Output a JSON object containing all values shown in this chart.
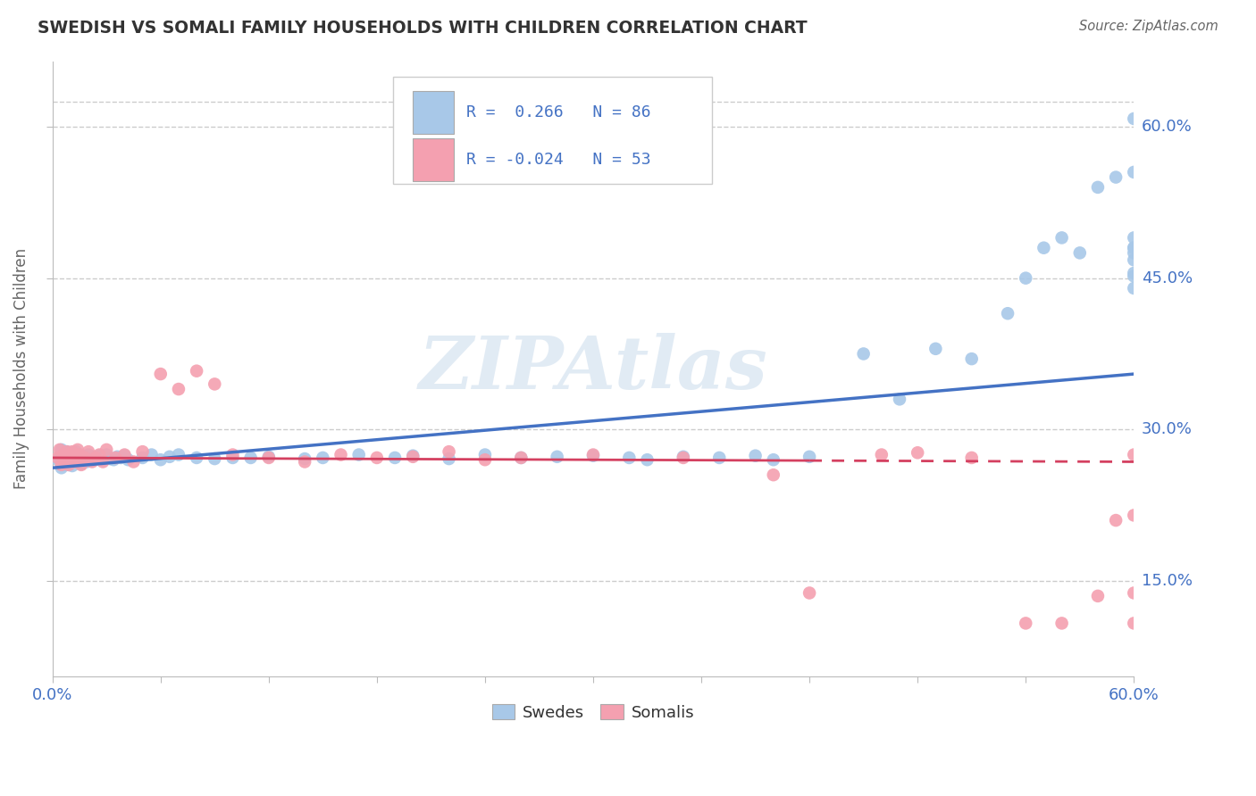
{
  "title": "SWEDISH VS SOMALI FAMILY HOUSEHOLDS WITH CHILDREN CORRELATION CHART",
  "source": "Source: ZipAtlas.com",
  "ylabel": "Family Households with Children",
  "xlim": [
    0.0,
    0.6
  ],
  "ylim": [
    0.055,
    0.665
  ],
  "xticks": [
    0.0,
    0.06,
    0.12,
    0.18,
    0.24,
    0.3,
    0.36,
    0.42,
    0.48,
    0.54,
    0.6
  ],
  "ytick_labels": [
    "15.0%",
    "30.0%",
    "45.0%",
    "60.0%"
  ],
  "ytick_values": [
    0.15,
    0.3,
    0.45,
    0.6
  ],
  "watermark": "ZIPAtlas",
  "swedish_color": "#a8c8e8",
  "somali_color": "#f4a0b0",
  "swedish_line_color": "#4472c4",
  "somali_line_color": "#d44060",
  "background_color": "#ffffff",
  "grid_color": "#cccccc",
  "sw_line_x0": 0.0,
  "sw_line_y0": 0.262,
  "sw_line_x1": 0.6,
  "sw_line_y1": 0.355,
  "so_line_x0": 0.0,
  "so_line_y0": 0.272,
  "so_line_x1": 0.6,
  "so_line_y1": 0.268,
  "swedish_pts_x": [
    0.003,
    0.005,
    0.005,
    0.006,
    0.006,
    0.007,
    0.007,
    0.008,
    0.008,
    0.009,
    0.009,
    0.01,
    0.01,
    0.011,
    0.011,
    0.012,
    0.012,
    0.013,
    0.013,
    0.014,
    0.015,
    0.016,
    0.016,
    0.017,
    0.018,
    0.019,
    0.02,
    0.022,
    0.024,
    0.026,
    0.028,
    0.03,
    0.032,
    0.034,
    0.036,
    0.038,
    0.04,
    0.042,
    0.05,
    0.055,
    0.06,
    0.065,
    0.07,
    0.08,
    0.09,
    0.1,
    0.11,
    0.12,
    0.14,
    0.15,
    0.17,
    0.19,
    0.2,
    0.22,
    0.24,
    0.26,
    0.28,
    0.3,
    0.32,
    0.33,
    0.35,
    0.37,
    0.39,
    0.4,
    0.42,
    0.45,
    0.47,
    0.49,
    0.51,
    0.53,
    0.54,
    0.55,
    0.56,
    0.57,
    0.58,
    0.59,
    0.6,
    0.6,
    0.6,
    0.6,
    0.6,
    0.6,
    0.6,
    0.6,
    0.6,
    0.6
  ],
  "swedish_pts_y": [
    0.27,
    0.28,
    0.262,
    0.268,
    0.274,
    0.275,
    0.265,
    0.27,
    0.278,
    0.272,
    0.265,
    0.268,
    0.276,
    0.272,
    0.264,
    0.274,
    0.268,
    0.27,
    0.278,
    0.272,
    0.27,
    0.274,
    0.266,
    0.27,
    0.273,
    0.268,
    0.275,
    0.269,
    0.272,
    0.274,
    0.27,
    0.275,
    0.271,
    0.27,
    0.273,
    0.272,
    0.274,
    0.27,
    0.272,
    0.275,
    0.27,
    0.273,
    0.275,
    0.272,
    0.271,
    0.272,
    0.272,
    0.273,
    0.271,
    0.272,
    0.275,
    0.272,
    0.274,
    0.271,
    0.275,
    0.272,
    0.273,
    0.274,
    0.272,
    0.27,
    0.273,
    0.272,
    0.274,
    0.27,
    0.273,
    0.375,
    0.33,
    0.38,
    0.37,
    0.415,
    0.45,
    0.48,
    0.49,
    0.475,
    0.54,
    0.55,
    0.608,
    0.555,
    0.49,
    0.48,
    0.468,
    0.44,
    0.475,
    0.452,
    0.48,
    0.455
  ],
  "somali_pts_x": [
    0.003,
    0.004,
    0.005,
    0.006,
    0.007,
    0.008,
    0.009,
    0.01,
    0.011,
    0.012,
    0.013,
    0.014,
    0.015,
    0.016,
    0.018,
    0.02,
    0.022,
    0.024,
    0.026,
    0.028,
    0.03,
    0.035,
    0.04,
    0.045,
    0.05,
    0.06,
    0.07,
    0.08,
    0.09,
    0.1,
    0.12,
    0.14,
    0.16,
    0.18,
    0.2,
    0.22,
    0.24,
    0.26,
    0.3,
    0.35,
    0.4,
    0.42,
    0.46,
    0.48,
    0.51,
    0.54,
    0.56,
    0.58,
    0.59,
    0.6,
    0.6,
    0.6,
    0.6
  ],
  "somali_pts_y": [
    0.272,
    0.28,
    0.265,
    0.275,
    0.268,
    0.278,
    0.265,
    0.27,
    0.278,
    0.272,
    0.268,
    0.28,
    0.275,
    0.265,
    0.272,
    0.278,
    0.268,
    0.272,
    0.275,
    0.268,
    0.28,
    0.272,
    0.275,
    0.268,
    0.278,
    0.355,
    0.34,
    0.358,
    0.345,
    0.275,
    0.272,
    0.268,
    0.275,
    0.272,
    0.273,
    0.278,
    0.27,
    0.272,
    0.275,
    0.272,
    0.255,
    0.138,
    0.275,
    0.277,
    0.272,
    0.108,
    0.108,
    0.135,
    0.21,
    0.275,
    0.138,
    0.108,
    0.215
  ]
}
